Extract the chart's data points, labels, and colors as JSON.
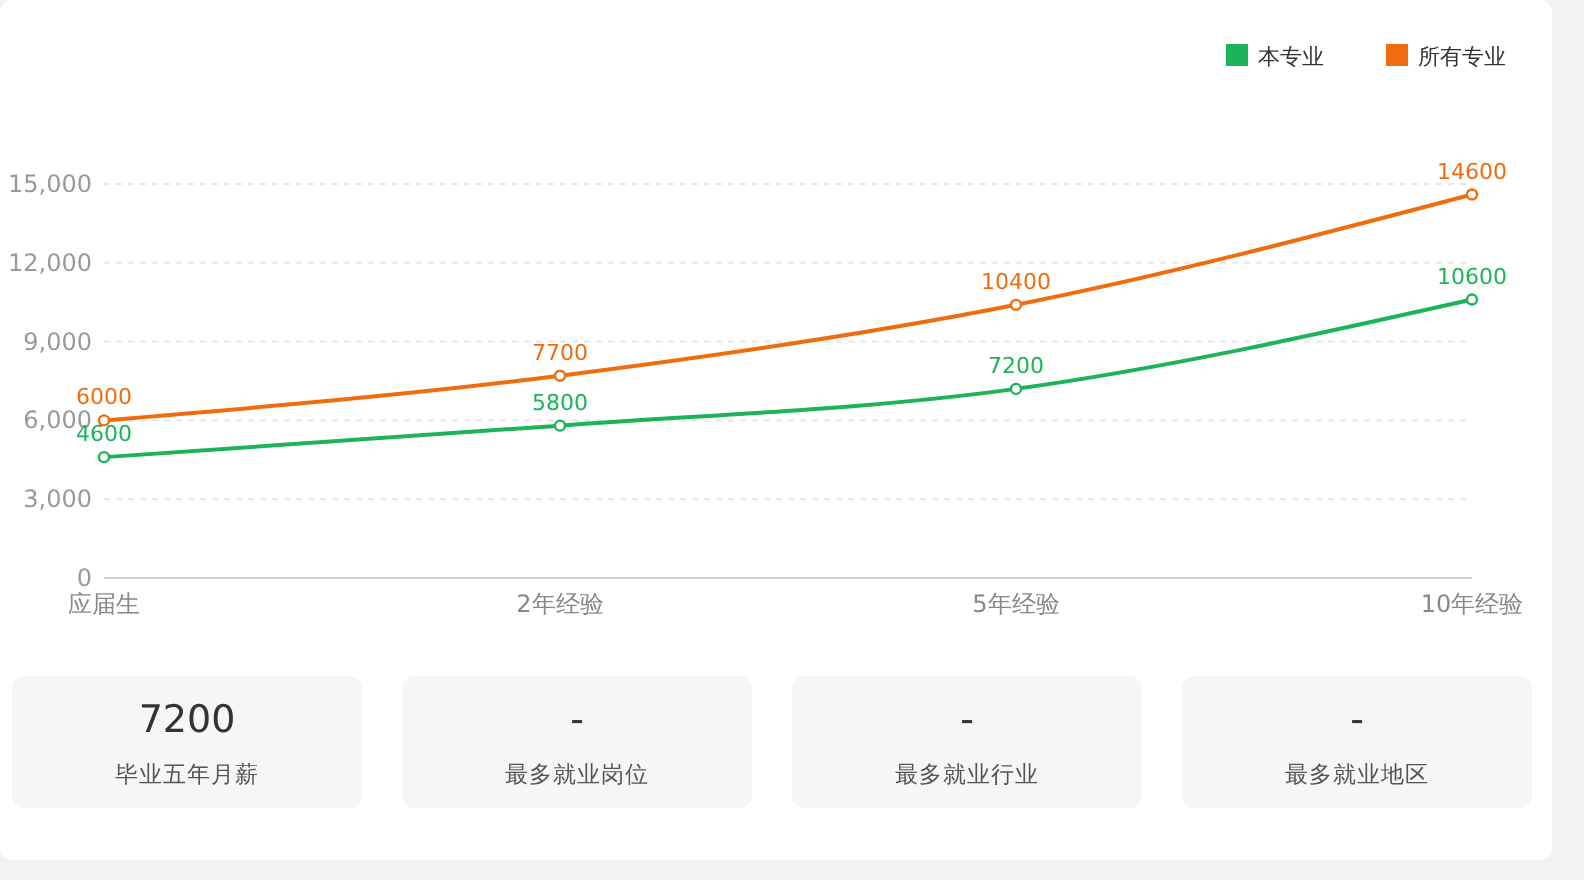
{
  "chart_data": [
    {
      "type": "line",
      "categories": [
        "应届生",
        "2年经验",
        "5年经验",
        "10年经验"
      ],
      "series": [
        {
          "name": "本专业",
          "color": "#1db35a",
          "values": [
            4600,
            5800,
            7200,
            10600
          ]
        },
        {
          "name": "所有专业",
          "color": "#f06d0f",
          "values": [
            6000,
            7700,
            10400,
            14600
          ]
        }
      ],
      "ylim": [
        0,
        15000
      ],
      "yticks": [
        {
          "value": 0,
          "label": "0"
        },
        {
          "value": 3000,
          "label": "3,000"
        },
        {
          "value": 6000,
          "label": "6,000"
        },
        {
          "value": 9000,
          "label": "9,000"
        },
        {
          "value": 12000,
          "label": "12,000"
        },
        {
          "value": 15000,
          "label": "15,000"
        }
      ],
      "grid": "y",
      "legend": "top right",
      "marker": "circle",
      "line_style": "solid",
      "data_labels": true
    },
    {
      "type": "other",
      "annotations": [
        "7200",
        "毕业五年月薪",
        "-",
        "最多就业岗位",
        "-",
        "最多就业行业",
        "-",
        "最多就业地区"
      ]
    }
  ]
}
